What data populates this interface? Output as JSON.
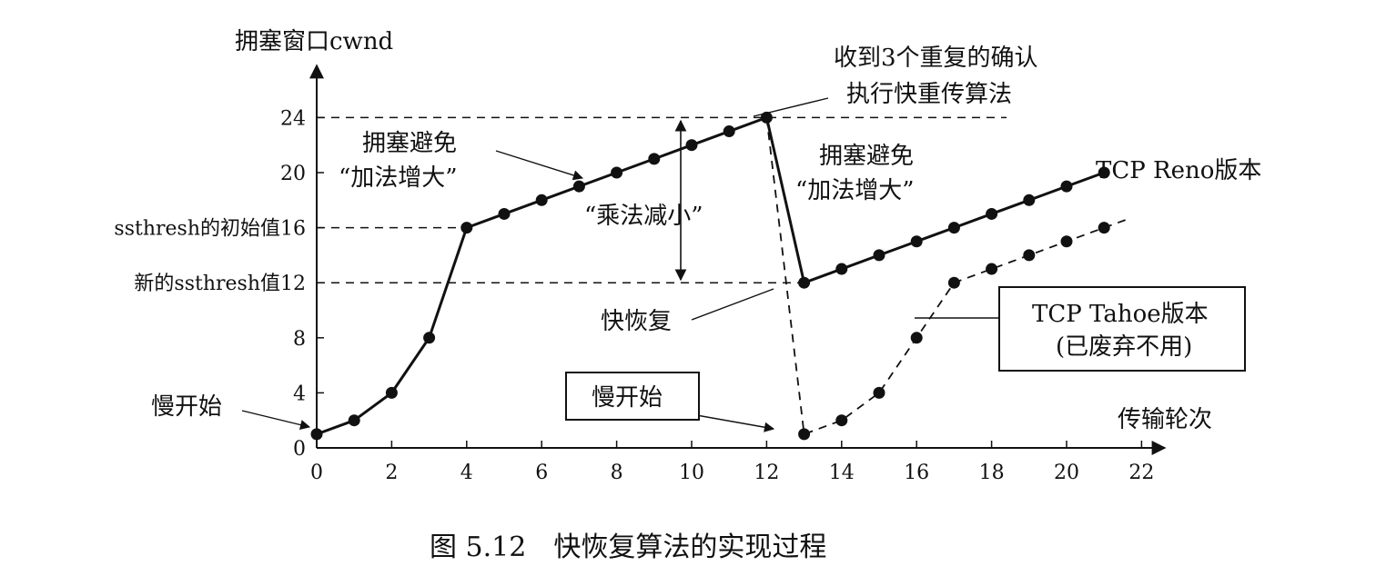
{
  "caption": "图 5.12　快恢复算法的实现过程",
  "chart_data": {
    "type": "line",
    "ylabel": "拥塞窗口cwnd",
    "xlabel": "传输轮次",
    "xlim": [
      0,
      22
    ],
    "ylim": [
      0,
      24
    ],
    "xticks": [
      0,
      2,
      4,
      6,
      8,
      10,
      12,
      14,
      16,
      18,
      20,
      22
    ],
    "yticks": [
      0,
      4,
      8,
      12,
      16,
      20,
      24
    ],
    "y_tick_labels": [
      "0",
      "4",
      "8",
      "新的ssthresh值12",
      "ssthresh的初始值16",
      "20",
      "24"
    ],
    "grid": false,
    "series": [
      {
        "name": "TCP Reno版本",
        "style": "solid",
        "points": [
          [
            0,
            1
          ],
          [
            1,
            2
          ],
          [
            2,
            4
          ],
          [
            3,
            8
          ],
          [
            4,
            16
          ],
          [
            5,
            17
          ],
          [
            6,
            18
          ],
          [
            7,
            19
          ],
          [
            8,
            20
          ],
          [
            9,
            21
          ],
          [
            10,
            22
          ],
          [
            11,
            23
          ],
          [
            12,
            24
          ],
          [
            13,
            12
          ],
          [
            14,
            13
          ],
          [
            15,
            14
          ],
          [
            16,
            15
          ],
          [
            17,
            16
          ],
          [
            18,
            17
          ],
          [
            19,
            18
          ],
          [
            20,
            19
          ],
          [
            21,
            20
          ]
        ]
      },
      {
        "name": "TCP Tahoe版本",
        "style": "dashed",
        "points": [
          [
            12,
            24
          ],
          [
            13,
            1
          ],
          [
            14,
            2
          ],
          [
            15,
            4
          ],
          [
            16,
            8
          ],
          [
            17,
            12
          ],
          [
            18,
            13
          ],
          [
            19,
            14
          ],
          [
            20,
            15
          ],
          [
            21,
            16
          ]
        ]
      }
    ],
    "reference_lines": [
      {
        "y": 24,
        "x_from": 0,
        "x_to": 18.4
      },
      {
        "y": 16,
        "x_from": 0,
        "x_to": 4
      },
      {
        "y": 12,
        "x_from": 0,
        "x_to": 13
      }
    ],
    "annotations": {
      "three_dup_ack_1": "收到3个重复的确认",
      "three_dup_ack_2": "执行快重传算法",
      "cong_avoid_1_a": "拥塞避免",
      "cong_avoid_1_b": "“加法增大”",
      "cong_avoid_2_a": "拥塞避免",
      "cong_avoid_2_b": "“加法增大”",
      "mult_decrease": "“乘法减小”",
      "fast_recovery": "快恢复",
      "slow_start_1": "慢开始",
      "slow_start_2": "慢开始",
      "reno_label": "TCP Reno版本",
      "tahoe_label_1": "TCP Tahoe版本",
      "tahoe_label_2": "(已废弃不用)"
    }
  }
}
